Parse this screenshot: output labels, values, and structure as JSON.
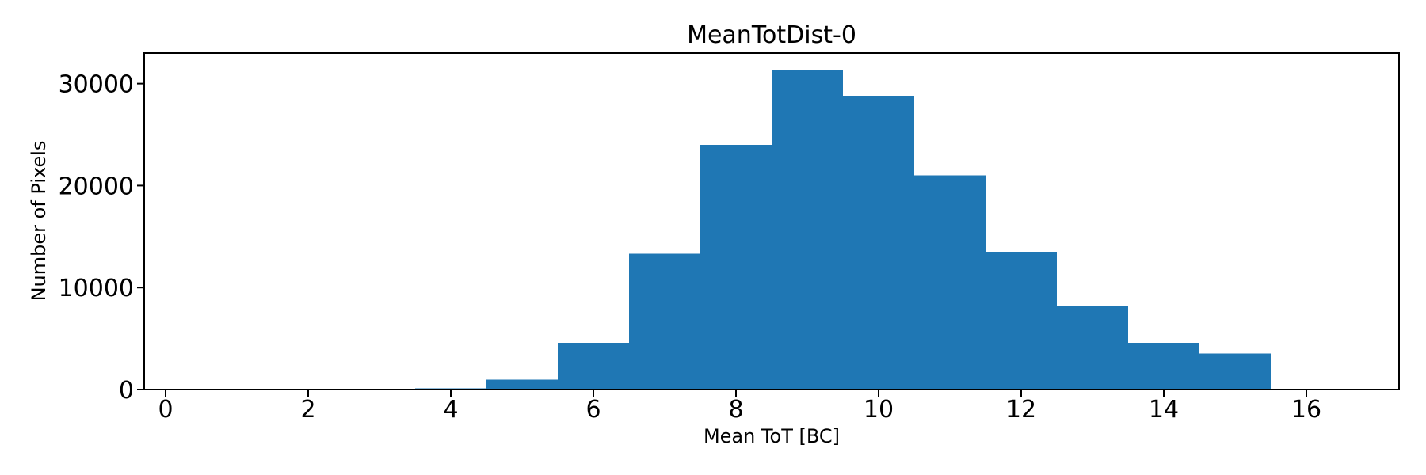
{
  "chart_data": {
    "type": "bar",
    "subtype": "histogram",
    "title": "MeanTotDist-0",
    "xlabel": "Mean ToT [BC]",
    "ylabel": "Number of Pixels",
    "bin_edges": [
      3.5,
      4.5,
      5.5,
      6.5,
      7.5,
      8.5,
      9.5,
      10.5,
      11.5,
      12.5,
      13.5,
      14.5,
      15.5
    ],
    "values": [
      120,
      980,
      4600,
      13300,
      24000,
      31300,
      28800,
      21000,
      13500,
      8150,
      4570,
      3550
    ],
    "xlim": [
      -0.3,
      17.3
    ],
    "ylim": [
      0,
      33000
    ],
    "xticks": [
      0,
      2,
      4,
      6,
      8,
      10,
      12,
      14,
      16
    ],
    "xtick_labels": [
      "0",
      "2",
      "4",
      "6",
      "8",
      "10",
      "12",
      "14",
      "16"
    ],
    "yticks": [
      0,
      10000,
      20000,
      30000
    ],
    "ytick_labels": [
      "0",
      "10000",
      "20000",
      "30000"
    ],
    "grid": false,
    "legend": null,
    "bar_color": "#1f77b4",
    "axis_color": "#000000",
    "background_color": "#ffffff"
  }
}
